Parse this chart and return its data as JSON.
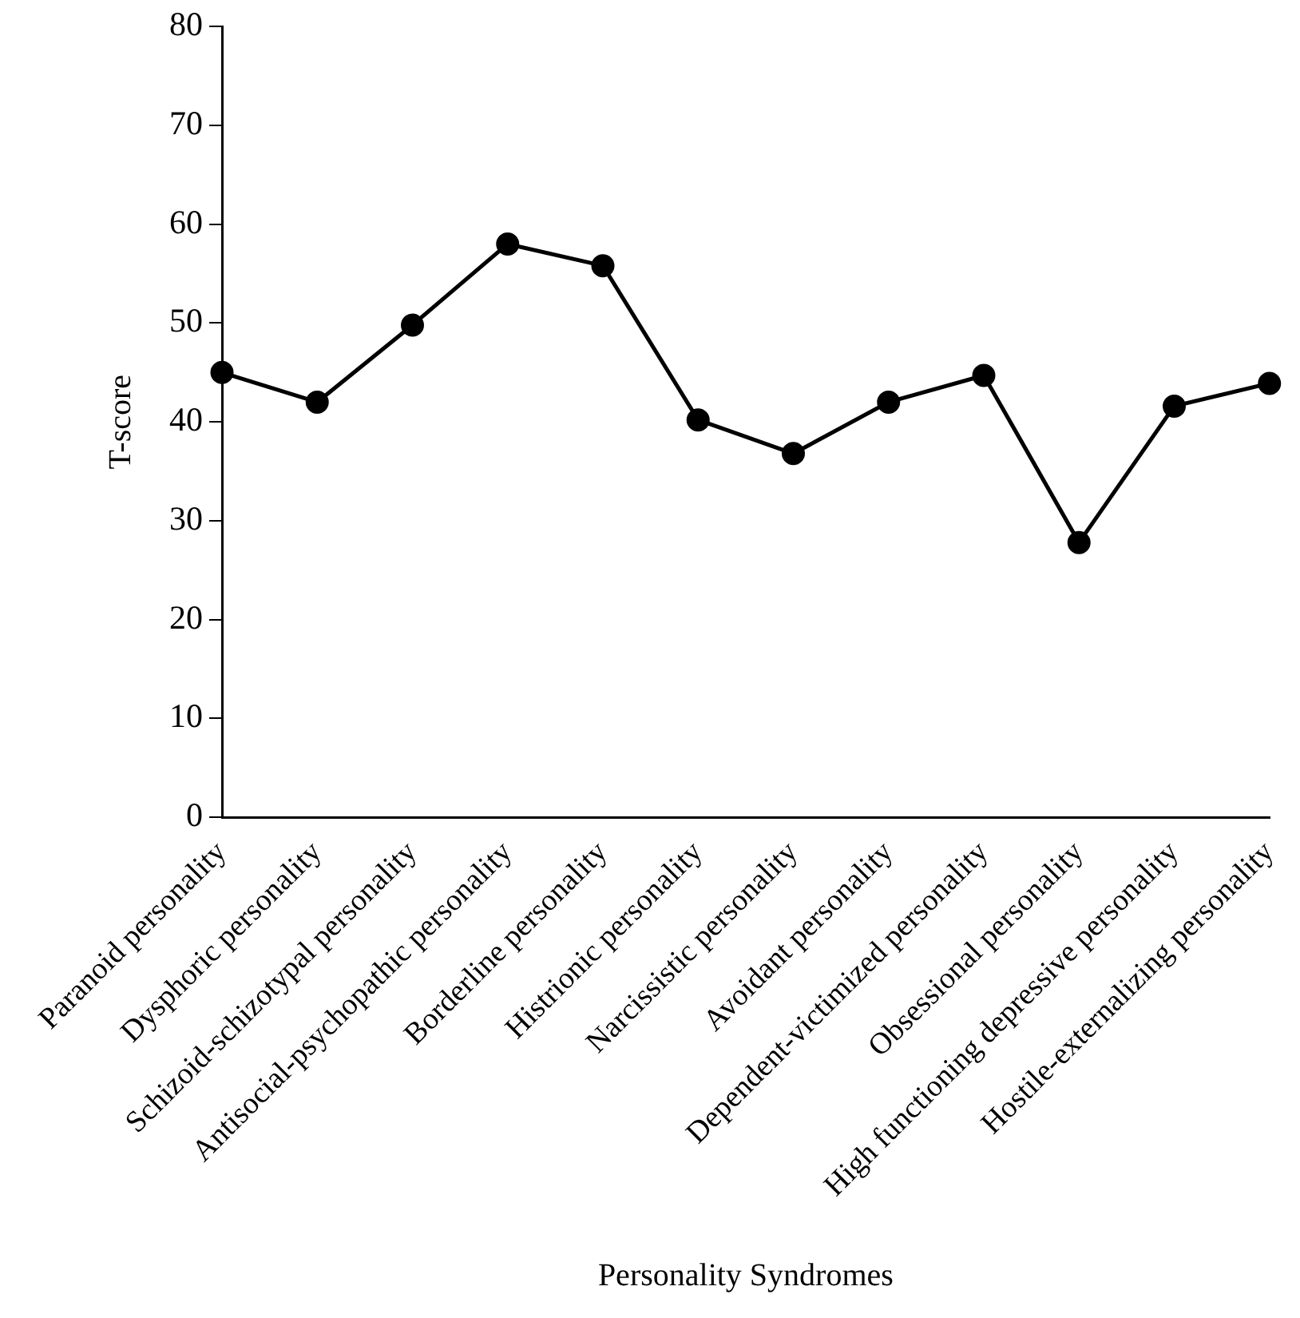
{
  "chart_data": {
    "type": "line",
    "xlabel": "Personality Syndromes",
    "ylabel": "T-score",
    "categories": [
      "Paranoid personality",
      "Dysphoric personality",
      "Schizoid-schizotypal personality",
      "Antisocial-psychopathic personality",
      "Borderline personality",
      "Histrionic personality",
      "Narcissistic personality",
      "Avoidant personality",
      "Dependent-victimized personality",
      "Obsessional personality",
      "High functioning depressive personality",
      "Hostile-externalizing personality"
    ],
    "series": [
      {
        "color": "#000000",
        "values": [
          45,
          42,
          49.8,
          58,
          55.8,
          40.2,
          36.8,
          42,
          44.7,
          27.8,
          41.6,
          43.9
        ]
      }
    ],
    "ylim": [
      0,
      80
    ],
    "yticks": [
      0,
      10,
      20,
      30,
      40,
      50,
      60,
      70,
      80
    ],
    "grid": false,
    "legend": false,
    "marker": "circle",
    "line_style": "solid"
  }
}
